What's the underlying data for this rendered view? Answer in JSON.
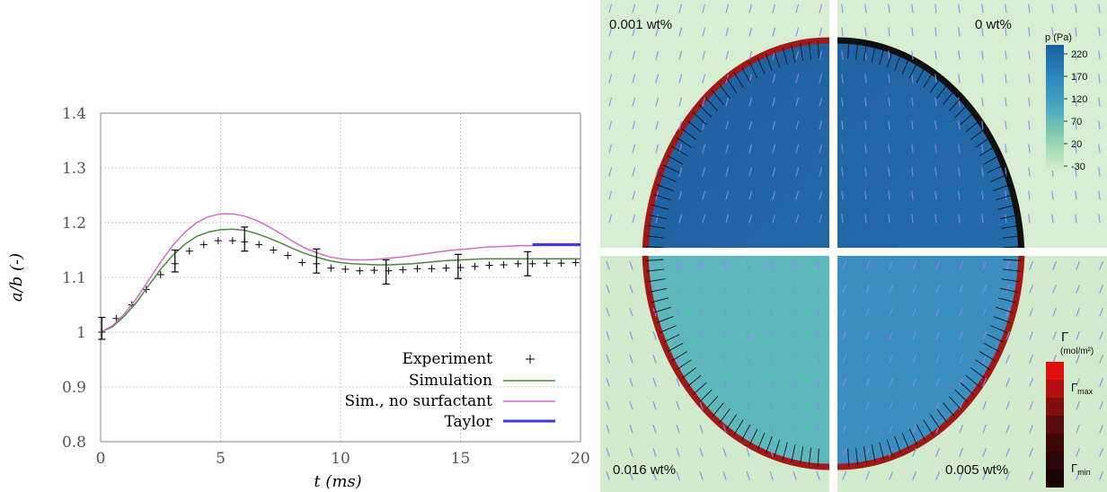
{
  "chart_data": {
    "type": "line",
    "xlabel": "t (ms)",
    "ylabel": "a/b (-)",
    "xlim": [
      0,
      20
    ],
    "ylim": [
      0.8,
      1.4
    ],
    "xticks": [
      "0",
      "5",
      "10",
      "15",
      "20"
    ],
    "yticks": [
      "0.8",
      "0.9",
      "1",
      "1.1",
      "1.2",
      "1.3",
      "1.4"
    ],
    "grid": true,
    "legend_position": "bottom-right",
    "series": [
      {
        "name": "Experiment",
        "kind": "points",
        "color": "#000000",
        "x": [
          0.05,
          0.65,
          1.3,
          1.9,
          2.5,
          3.1,
          3.7,
          4.3,
          4.9,
          5.5,
          6.0,
          6.6,
          7.2,
          7.8,
          8.4,
          9.0,
          9.6,
          10.2,
          10.8,
          11.4,
          12.0,
          12.6,
          13.2,
          13.8,
          14.4,
          15.0,
          15.6,
          16.2,
          16.8,
          17.4,
          18.0,
          18.6,
          19.2,
          19.8
        ],
        "y": [
          1.0,
          1.025,
          1.05,
          1.078,
          1.105,
          1.125,
          1.148,
          1.16,
          1.167,
          1.167,
          1.165,
          1.16,
          1.15,
          1.14,
          1.127,
          1.125,
          1.117,
          1.115,
          1.112,
          1.113,
          1.112,
          1.114,
          1.116,
          1.116,
          1.117,
          1.118,
          1.12,
          1.122,
          1.123,
          1.125,
          1.125,
          1.126,
          1.126,
          1.127
        ]
      },
      {
        "name": "Simulation",
        "kind": "line",
        "color": "#4a8a3c",
        "x": [
          0,
          0.5,
          1,
          1.5,
          2,
          2.5,
          3,
          3.5,
          4,
          4.5,
          5,
          5.5,
          6,
          6.5,
          7,
          7.5,
          8,
          8.5,
          9,
          9.5,
          10,
          10.5,
          11,
          11.5,
          12,
          12.5,
          13,
          13.5,
          14,
          14.5,
          15,
          15.5,
          16,
          16.5,
          17,
          17.5,
          18,
          18.5,
          19,
          19.5,
          20
        ],
        "y": [
          1.0,
          1.01,
          1.03,
          1.055,
          1.085,
          1.115,
          1.14,
          1.16,
          1.175,
          1.183,
          1.187,
          1.188,
          1.186,
          1.18,
          1.172,
          1.163,
          1.153,
          1.144,
          1.137,
          1.131,
          1.127,
          1.125,
          1.124,
          1.123,
          1.123,
          1.124,
          1.125,
          1.127,
          1.129,
          1.131,
          1.132,
          1.133,
          1.134,
          1.134,
          1.134,
          1.134,
          1.134,
          1.134,
          1.134,
          1.134,
          1.134
        ]
      },
      {
        "name": "Sim., no surfactant",
        "kind": "line",
        "color": "#d46cc8",
        "x": [
          0,
          0.5,
          1,
          1.5,
          2,
          2.5,
          3,
          3.5,
          4,
          4.5,
          5,
          5.5,
          6,
          6.5,
          7,
          7.5,
          8,
          8.5,
          9,
          9.5,
          10,
          10.5,
          11,
          11.5,
          12,
          12.5,
          13,
          13.5,
          14,
          14.5,
          15,
          15.5,
          16,
          16.5,
          17,
          17.5,
          18,
          18.5,
          19,
          19.5,
          20
        ],
        "y": [
          1.0,
          1.012,
          1.034,
          1.062,
          1.095,
          1.128,
          1.158,
          1.182,
          1.2,
          1.211,
          1.216,
          1.216,
          1.212,
          1.204,
          1.193,
          1.18,
          1.166,
          1.154,
          1.145,
          1.138,
          1.134,
          1.132,
          1.132,
          1.133,
          1.135,
          1.137,
          1.14,
          1.143,
          1.146,
          1.149,
          1.151,
          1.153,
          1.155,
          1.156,
          1.157,
          1.158,
          1.158,
          1.158,
          1.158,
          1.158,
          1.158
        ]
      },
      {
        "name": "Taylor",
        "kind": "line",
        "color": "#3a3ae0",
        "x": [
          18,
          20
        ],
        "y": [
          1.16,
          1.16
        ]
      }
    ],
    "error_bars": {
      "x": [
        0.05,
        3.1,
        6.0,
        9.0,
        11.9,
        14.9,
        17.8
      ],
      "y": [
        1.007,
        1.13,
        1.17,
        1.13,
        1.11,
        1.12,
        1.125
      ],
      "err": [
        0.02,
        0.02,
        0.022,
        0.022,
        0.022,
        0.022,
        0.022
      ]
    }
  },
  "panels": {
    "top_left_label": "0.001 wt%",
    "top_right_label": "0 wt%",
    "bottom_left_label": "0.016 wt%",
    "bottom_right_label": "0.005 wt%"
  },
  "pressure_colorbar": {
    "title": "p (Pa)",
    "ticks": [
      "220",
      "170",
      "120",
      "70",
      "20",
      "-30"
    ]
  },
  "surfactant_colorbar": {
    "title": "Γ",
    "unit": "(mol/m²)",
    "max_label": "Γ",
    "max_sub": "max",
    "min_label": "Γ",
    "min_sub": "min"
  },
  "colors": {
    "background_flow": "#d8eed2",
    "droplet_top": "#2068a6",
    "droplet_bottom_left": "#5db8bc",
    "droplet_bottom_right": "#3b8fc0",
    "interface_surfactant": "#a01818",
    "interface_clean": "#101010",
    "velocity_vectors": "#8a8af0"
  }
}
